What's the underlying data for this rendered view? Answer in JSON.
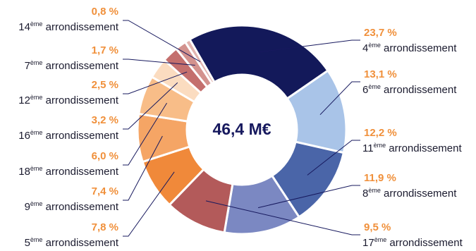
{
  "chart_data": {
    "type": "pie",
    "center_label": "46,4 M€",
    "slices": [
      {
        "value": 23.7,
        "pct_label": "23,7 %",
        "ord": "4",
        "sup": "ème",
        "text": " arrondissement",
        "color": "#13195a"
      },
      {
        "value": 13.1,
        "pct_label": "13,1 %",
        "ord": "6",
        "sup": "ème",
        "text": " arrondissement",
        "color": "#a9c4e8"
      },
      {
        "value": 12.2,
        "pct_label": "12,2 %",
        "ord": "11",
        "sup": "ème",
        "text": " arrondissement",
        "color": "#4a65a8"
      },
      {
        "value": 11.9,
        "pct_label": "11,9 %",
        "ord": "8",
        "sup": "ème",
        "text": " arrondissement",
        "color": "#7b88c2"
      },
      {
        "value": 9.5,
        "pct_label": "9,5 %",
        "ord": "17",
        "sup": "ème",
        "text": " arrondissement",
        "color": "#b35a5a"
      },
      {
        "value": 7.8,
        "pct_label": "7,8 %",
        "ord": "5",
        "sup": "ème",
        "text": " arrondissement",
        "color": "#f0893a"
      },
      {
        "value": 7.4,
        "pct_label": "7,4 %",
        "ord": "9",
        "sup": "ème",
        "text": " arrondissement",
        "color": "#f5a565"
      },
      {
        "value": 6.0,
        "pct_label": "6,0 %",
        "ord": "18",
        "sup": "ème",
        "text": " arrondissement",
        "color": "#f8bd88"
      },
      {
        "value": 3.2,
        "pct_label": "3,2 %",
        "ord": "16",
        "sup": "ème",
        "text": " arrondissement",
        "color": "#fbdcc0"
      },
      {
        "value": 2.5,
        "pct_label": "2,5 %",
        "ord": "12",
        "sup": "ème",
        "text": " arrondissement",
        "color": "#c46f6d"
      },
      {
        "value": 1.7,
        "pct_label": "1,7 %",
        "ord": "7",
        "sup": "ème",
        "text": " arrondissement",
        "color": "#d3928e"
      },
      {
        "value": 0.8,
        "pct_label": "0,8 %",
        "ord": "14",
        "sup": "ème",
        "text": " arrondissement",
        "color": "#e2b5b0"
      }
    ]
  }
}
